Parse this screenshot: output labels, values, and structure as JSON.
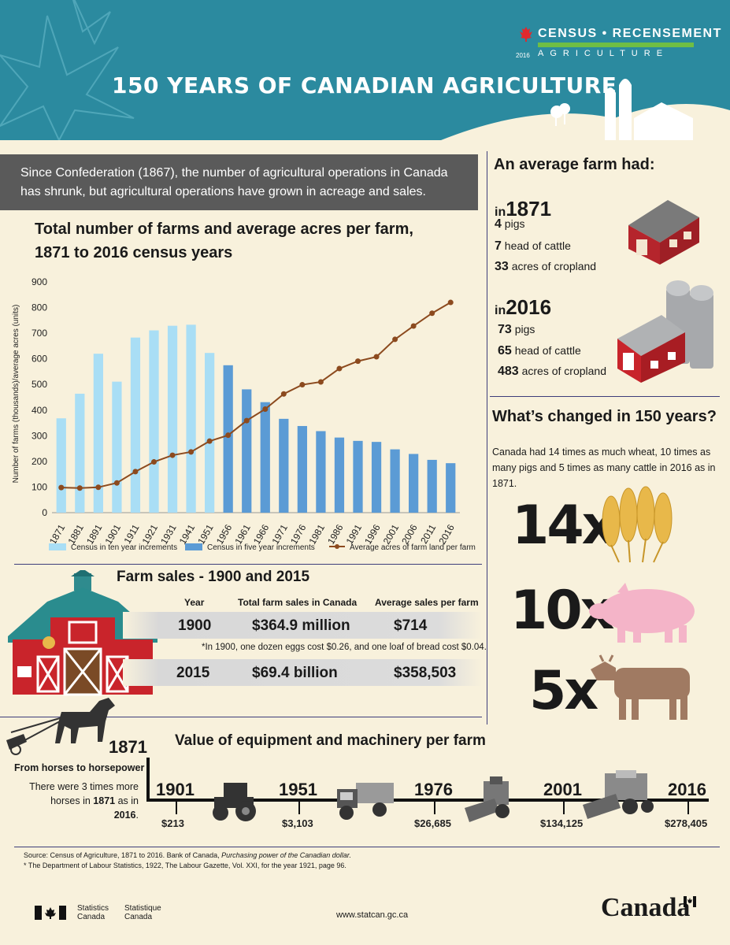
{
  "header": {
    "title": "150 YEARS OF CANADIAN AGRICULTURE",
    "census_top": "CENSUS • RECENSEMENT",
    "census_sub": "AGRICULTURE",
    "census_year": "2016"
  },
  "intro": {
    "text": "Since Confederation (1867), the number of agricultural operations in Canada has shrunk, but agricultural operations have grown in acreage and sales."
  },
  "chart_data": {
    "type": "bar",
    "title": "Total number of farms and average acres per farm, 1871 to 2016 census years",
    "ylabel": "Number of farms (thousands)/average acres (units)",
    "ylim": [
      0,
      900
    ],
    "yticks": [
      0,
      100,
      200,
      300,
      400,
      500,
      600,
      700,
      800,
      900
    ],
    "categories": [
      "1871",
      "1881",
      "1891",
      "1901",
      "1911",
      "1921",
      "1931",
      "1941",
      "1951",
      "1956",
      "1961",
      "1966",
      "1971",
      "1976",
      "1981",
      "1986",
      "1991",
      "1996",
      "2001",
      "2006",
      "2011",
      "2016"
    ],
    "series": [
      {
        "name": "Census in ten year increments",
        "type": "bar",
        "color": "#a9def5",
        "values": [
          368,
          464,
          620,
          511,
          683,
          711,
          729,
          733,
          623,
          null,
          null,
          null,
          null,
          null,
          null,
          null,
          null,
          null,
          null,
          null,
          null,
          null
        ]
      },
      {
        "name": "Census in five year increments",
        "type": "bar",
        "color": "#5b9bd5",
        "values": [
          null,
          null,
          null,
          null,
          null,
          null,
          null,
          null,
          null,
          575,
          481,
          431,
          366,
          338,
          318,
          293,
          280,
          276,
          247,
          229,
          206,
          193
        ]
      },
      {
        "name": "Average acres of farm land per farm",
        "type": "line",
        "color": "#8c4a1e",
        "values": [
          98,
          96,
          99,
          116,
          160,
          198,
          224,
          237,
          279,
          302,
          359,
          404,
          463,
          499,
          510,
          562,
          591,
          608,
          676,
          728,
          778,
          820
        ]
      }
    ],
    "legend_position": "bottom"
  },
  "average_farm": {
    "title": "An average farm had:",
    "in_label": "in",
    "y1871": {
      "year": "1871",
      "stats": [
        {
          "n": "4",
          "t": "pigs"
        },
        {
          "n": "7",
          "t": "head of cattle"
        },
        {
          "n": "33",
          "t": "acres of cropland"
        }
      ]
    },
    "y2016": {
      "year": "2016",
      "stats": [
        {
          "n": "73",
          "t": "pigs"
        },
        {
          "n": "65",
          "t": "head of cattle"
        },
        {
          "n": "483",
          "t": "acres of cropland"
        }
      ]
    }
  },
  "changed": {
    "title": "What’s changed in 150 years?",
    "text": "Canada had 14 times as much wheat, 10 times as many pigs and 5 times as many cattle in 2016 as in 1871.",
    "wheat": "14x",
    "pigs": "10x",
    "cattle": "5x"
  },
  "sales": {
    "title": "Farm sales - 1900 and 2015",
    "headers": [
      "Year",
      "Total farm sales in Canada",
      "Average sales per farm"
    ],
    "rows": [
      {
        "year": "1900",
        "total": "$364.9 million",
        "avg": "$714"
      },
      {
        "year": "2015",
        "total": "$69.4 billion",
        "avg": "$358,503"
      }
    ],
    "note": "*In 1900, one dozen eggs cost $0.26, and one loaf of bread cost $0.04."
  },
  "equipment": {
    "title": "Value of equipment and machinery per farm",
    "start_year": "1871",
    "horse_title": "From horses to horsepower",
    "horse_text_a": "There were 3 times more horses in ",
    "horse_y1": "1871",
    "horse_text_b": " as in ",
    "horse_y2": "2016",
    "horse_text_c": ".",
    "points": [
      {
        "year": "1901",
        "value": "$213"
      },
      {
        "year": "1951",
        "value": "$3,103"
      },
      {
        "year": "1976",
        "value": "$26,685"
      },
      {
        "year": "2001",
        "value": "$134,125"
      },
      {
        "year": "2016",
        "value": "$278,405"
      }
    ]
  },
  "footer": {
    "source_line1_a": "Source: Census of Agriculture, 1871 to 2016. Bank of Canada, ",
    "source_line1_b": "Purchasing power of the Canadian dollar.",
    "source_line2": "* The Department of Labour Statistics, 1922, The Labour Gazette, Vol. XXI, for the year 1921, page 96.",
    "statcan_en_1": "Statistics",
    "statcan_en_2": "Canada",
    "statcan_fr_1": "Statistique",
    "statcan_fr_2": "Canada",
    "url": "www.statcan.gc.ca",
    "wordmark": "Canada"
  }
}
